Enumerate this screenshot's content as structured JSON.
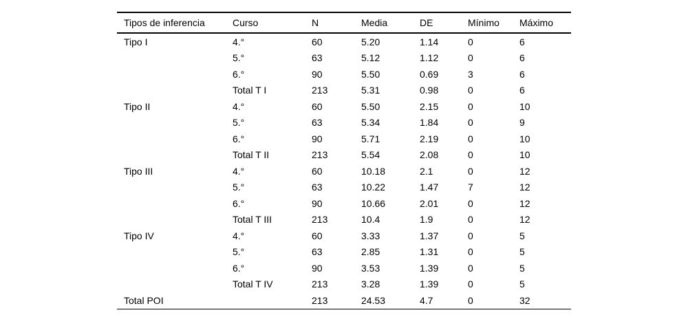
{
  "table": {
    "columns": [
      "Tipos de inferencia",
      "Curso",
      "N",
      "Media",
      "DE",
      "Mínimo",
      "Máximo"
    ],
    "rows": [
      [
        "Tipo I",
        "4.°",
        "60",
        "5.20",
        "1.14",
        "0",
        "6"
      ],
      [
        "",
        "5.°",
        "63",
        "5.12",
        "1.12",
        "0",
        "6"
      ],
      [
        "",
        "6.°",
        "90",
        "5.50",
        "0.69",
        "3",
        "6"
      ],
      [
        "",
        "Total T I",
        "213",
        "5.31",
        "0.98",
        "0",
        "6"
      ],
      [
        "Tipo II",
        "4.°",
        "60",
        "5.50",
        "2.15",
        "0",
        "10"
      ],
      [
        "",
        "5.°",
        "63",
        "5.34",
        "1.84",
        "0",
        "9"
      ],
      [
        "",
        "6.°",
        "90",
        "5.71",
        "2.19",
        "0",
        "10"
      ],
      [
        "",
        "Total T II",
        "213",
        "5.54",
        "2.08",
        "0",
        "10"
      ],
      [
        "Tipo III",
        "4.°",
        "60",
        "10.18",
        "2.1",
        "0",
        "12"
      ],
      [
        "",
        "5.°",
        "63",
        "10.22",
        "1.47",
        "7",
        "12"
      ],
      [
        "",
        "6.°",
        "90",
        "10.66",
        "2.01",
        "0",
        "12"
      ],
      [
        "",
        "Total T III",
        "213",
        "10.4",
        "1.9",
        "0",
        "12"
      ],
      [
        "Tipo IV",
        "4.°",
        "60",
        "3.33",
        "1.37",
        "0",
        "5"
      ],
      [
        "",
        "5.°",
        "63",
        "2.85",
        "1.31",
        "0",
        "5"
      ],
      [
        "",
        "6.°",
        "90",
        "3.53",
        "1.39",
        "0",
        "5"
      ],
      [
        "",
        "Total T IV",
        "213",
        "3.28",
        "1.39",
        "0",
        "5"
      ],
      [
        "Total POI",
        "",
        "213",
        "24.53",
        "4.7",
        "0",
        "32"
      ]
    ]
  },
  "chart_data": {
    "type": "table",
    "title": "",
    "columns": [
      "Tipos de inferencia",
      "Curso",
      "N",
      "Media",
      "DE",
      "Mínimo",
      "Máximo"
    ],
    "rows": [
      [
        "Tipo I",
        "4.°",
        60,
        5.2,
        1.14,
        0,
        6
      ],
      [
        "Tipo I",
        "5.°",
        63,
        5.12,
        1.12,
        0,
        6
      ],
      [
        "Tipo I",
        "6.°",
        90,
        5.5,
        0.69,
        3,
        6
      ],
      [
        "Tipo I",
        "Total T I",
        213,
        5.31,
        0.98,
        0,
        6
      ],
      [
        "Tipo II",
        "4.°",
        60,
        5.5,
        2.15,
        0,
        10
      ],
      [
        "Tipo II",
        "5.°",
        63,
        5.34,
        1.84,
        0,
        9
      ],
      [
        "Tipo II",
        "6.°",
        90,
        5.71,
        2.19,
        0,
        10
      ],
      [
        "Tipo II",
        "Total T II",
        213,
        5.54,
        2.08,
        0,
        10
      ],
      [
        "Tipo III",
        "4.°",
        60,
        10.18,
        2.1,
        0,
        12
      ],
      [
        "Tipo III",
        "5.°",
        63,
        10.22,
        1.47,
        7,
        12
      ],
      [
        "Tipo III",
        "6.°",
        90,
        10.66,
        2.01,
        0,
        12
      ],
      [
        "Tipo III",
        "Total T III",
        213,
        10.4,
        1.9,
        0,
        12
      ],
      [
        "Tipo IV",
        "4.°",
        60,
        3.33,
        1.37,
        0,
        5
      ],
      [
        "Tipo IV",
        "5.°",
        63,
        2.85,
        1.31,
        0,
        5
      ],
      [
        "Tipo IV",
        "6.°",
        90,
        3.53,
        1.39,
        0,
        5
      ],
      [
        "Tipo IV",
        "Total T IV",
        213,
        3.28,
        1.39,
        0,
        5
      ],
      [
        "Total POI",
        "",
        213,
        24.53,
        4.7,
        0,
        32
      ]
    ]
  }
}
